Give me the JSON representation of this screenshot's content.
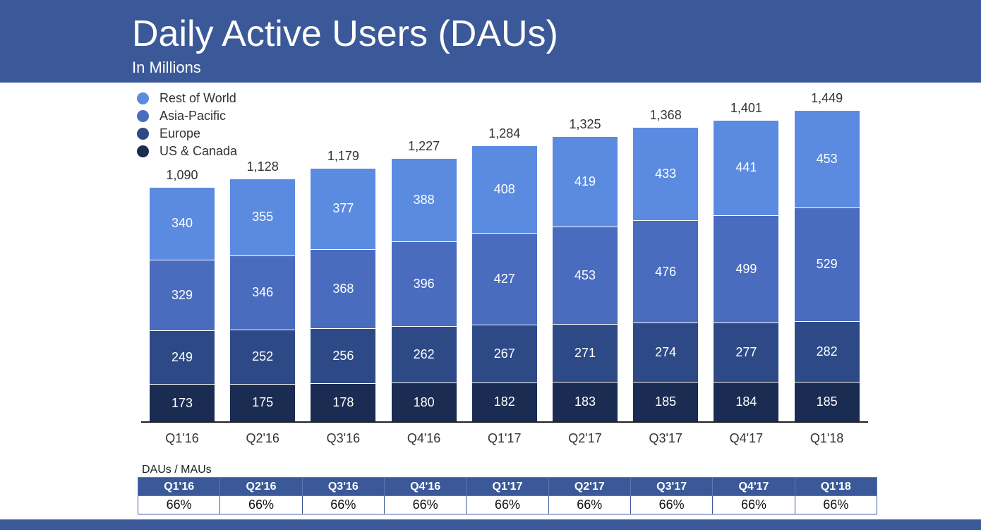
{
  "header": {
    "title": "Daily Active Users (DAUs)",
    "subtitle": "In Millions"
  },
  "chart_data": {
    "type": "bar",
    "stacked": true,
    "title": "Daily Active Users (DAUs)",
    "subtitle": "In Millions",
    "categories": [
      "Q1'16",
      "Q2'16",
      "Q3'16",
      "Q4'16",
      "Q1'17",
      "Q2'17",
      "Q3'17",
      "Q4'17",
      "Q1'18"
    ],
    "series": [
      {
        "name": "US & Canada",
        "color": "#1b2c52",
        "values": [
          173,
          175,
          178,
          180,
          182,
          183,
          185,
          184,
          185
        ]
      },
      {
        "name": "Europe",
        "color": "#2d4a86",
        "values": [
          249,
          252,
          256,
          262,
          267,
          271,
          274,
          277,
          282
        ]
      },
      {
        "name": "Asia-Pacific",
        "color": "#4a6cbf",
        "values": [
          329,
          346,
          368,
          396,
          427,
          453,
          476,
          499,
          529
        ]
      },
      {
        "name": "Rest of World",
        "color": "#5b8be0",
        "values": [
          340,
          355,
          377,
          388,
          408,
          419,
          433,
          441,
          453
        ]
      }
    ],
    "totals": [
      "1,090",
      "1,128",
      "1,179",
      "1,227",
      "1,284",
      "1,325",
      "1,368",
      "1,401",
      "1,449"
    ],
    "legend_order": [
      "Rest of World",
      "Asia-Pacific",
      "Europe",
      "US & Canada"
    ],
    "legend_position": "top-left",
    "grid": false
  },
  "table": {
    "label": "DAUs / MAUs",
    "headers": [
      "Q1'16",
      "Q2'16",
      "Q3'16",
      "Q4'16",
      "Q1'17",
      "Q2'17",
      "Q3'17",
      "Q4'17",
      "Q1'18"
    ],
    "values": [
      "66%",
      "66%",
      "66%",
      "66%",
      "66%",
      "66%",
      "66%",
      "66%",
      "66%"
    ]
  }
}
